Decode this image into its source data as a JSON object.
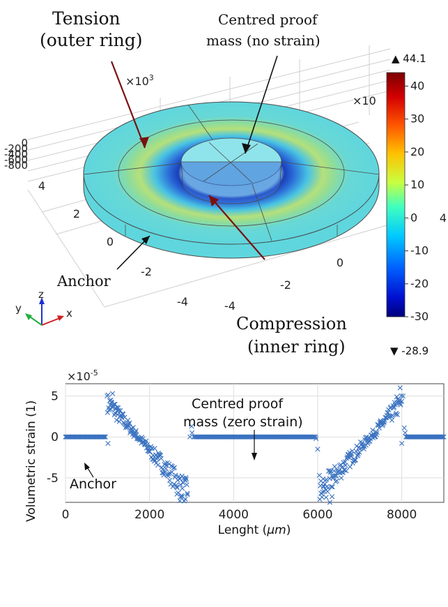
{
  "top_panel": {
    "annotations": {
      "tension_line1": "Tension",
      "tension_line2": "(outer ring)",
      "proof_line1": "Centred proof",
      "proof_line2": "mass (no strain)",
      "anchor": "Anchor",
      "compression_line1": "Compression",
      "compression_line2": "(inner ring)"
    },
    "scale_exp_base": "×10",
    "scale_exp_power": "3",
    "scale_exp_right": "×10",
    "z_ticks": [
      "0",
      "-200",
      "-400",
      "-600",
      "-800"
    ],
    "y_ticks": [
      "4",
      "2",
      "0",
      "-2",
      "-4"
    ],
    "x_ticks": [
      "-4",
      "-2",
      "0",
      "2",
      "4"
    ],
    "axis_triad": {
      "x": "x",
      "y": "y",
      "z": "z"
    },
    "colorbar": {
      "max_marker": "▲ 44.1",
      "min_marker": "▼ -28.9",
      "ticks": [
        40,
        30,
        20,
        10,
        0,
        -10,
        -20,
        -30
      ],
      "range": [
        -30,
        44.1
      ]
    }
  },
  "chart_data": {
    "type": "scatter",
    "xlabel": "Lenght (μm)",
    "xlabel_pre": "Lenght (",
    "xlabel_unit": "μm",
    "xlabel_post": ")",
    "ylabel": "Volumetric strain (1)",
    "y_exponent_base": "×10",
    "y_exponent_power": "-5",
    "xlim": [
      0,
      9000
    ],
    "ylim": [
      -8,
      6.5
    ],
    "xticks": [
      0,
      2000,
      4000,
      6000,
      8000
    ],
    "yticks": [
      5,
      0,
      -5
    ],
    "grid": true,
    "marker": "x",
    "marker_color": "#3a72c0",
    "annotations": {
      "proof_line1": "Centred proof",
      "proof_line2": "mass (zero strain)",
      "anchor": "Anchor"
    },
    "series": [
      {
        "segments": [
          {
            "kind": "flat",
            "x_from": 0,
            "x_to": 950,
            "y": 0,
            "count": 50
          },
          {
            "kind": "decay",
            "x_from": 1000,
            "x_to": 2900,
            "y_from": 4.2,
            "y_to": -6.8,
            "count": 150
          },
          {
            "kind": "flat",
            "x_from": 3050,
            "x_to": 5950,
            "y": 0,
            "count": 110
          },
          {
            "kind": "rise",
            "x_from": 6050,
            "x_to": 8000,
            "y_from": -6.8,
            "y_to": 4.2,
            "count": 150
          },
          {
            "kind": "flat",
            "x_from": 8100,
            "x_to": 9000,
            "y": 0,
            "count": 45
          }
        ],
        "extra_points": [
          [
            990,
            5.0
          ],
          [
            1010,
            -0.8
          ],
          [
            1080,
            4.5
          ],
          [
            1120,
            5.3
          ],
          [
            1180,
            4.0
          ],
          [
            1230,
            3.6
          ],
          [
            2650,
            -7.0
          ],
          [
            2720,
            -7.8
          ],
          [
            2780,
            -6.3
          ],
          [
            2850,
            -7.6
          ],
          [
            2900,
            -6.9
          ],
          [
            2960,
            0.0
          ],
          [
            3000,
            1.3
          ],
          [
            3010,
            0.5
          ],
          [
            5960,
            -0.2
          ],
          [
            6000,
            -1.5
          ],
          [
            6040,
            -4.7
          ],
          [
            6080,
            -6.9
          ],
          [
            6140,
            -6.0
          ],
          [
            6200,
            -7.4
          ],
          [
            6290,
            -8.0
          ],
          [
            6340,
            -7.3
          ],
          [
            7880,
            4.9
          ],
          [
            7960,
            6.0
          ],
          [
            8030,
            5.0
          ],
          [
            8000,
            -0.8
          ],
          [
            8060,
            1.1
          ],
          [
            8080,
            0.5
          ]
        ]
      }
    ]
  }
}
